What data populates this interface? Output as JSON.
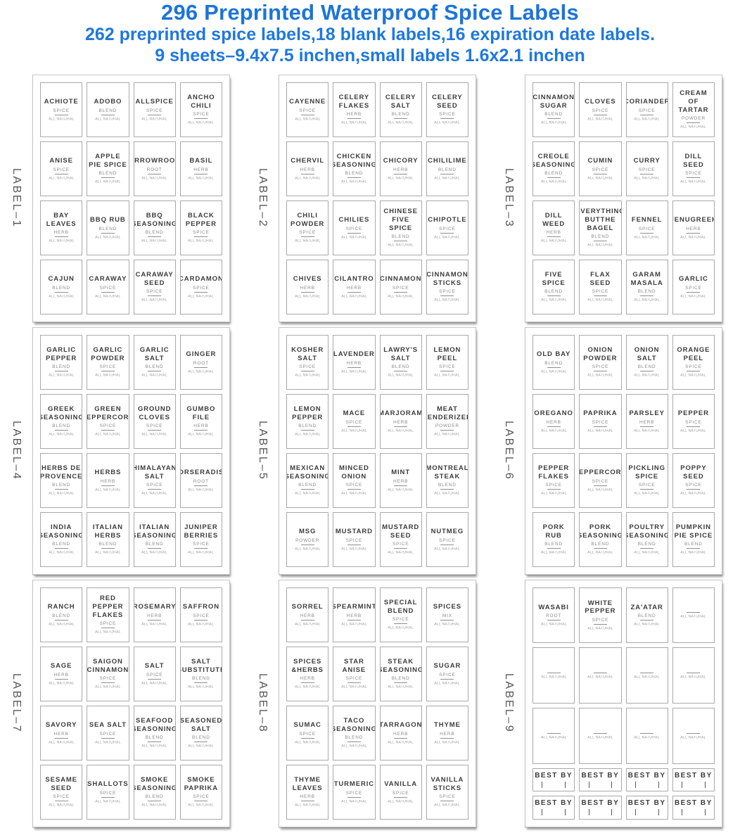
{
  "header": {
    "title": "296 Preprinted Waterproof Spice Labels",
    "subtitle1": "262 preprinted spice labels,18 blank labels,16 expiration date labels.",
    "subtitle2": "9 sheets–9.4x7.5 inchen,small labels 1.6x2.1 inchen",
    "accent_color": "#1c75d8"
  },
  "label_footer": "ALL NATURAL",
  "best_by_text": "BEST BY",
  "sheets": [
    {
      "side_label": "LABEL–1",
      "labels": [
        {
          "name": "ACHIOTE",
          "type": "SPICE"
        },
        {
          "name": "ADOBO",
          "type": "BLEND"
        },
        {
          "name": "ALLSPICE",
          "type": "SPICE"
        },
        {
          "name": "ANCHO CHILI",
          "type": "SPICE"
        },
        {
          "name": "ANISE",
          "type": "SPICE"
        },
        {
          "name": "APPLE PIE SPICE",
          "type": "BLEND"
        },
        {
          "name": "ARROWROOT",
          "type": "ROOT"
        },
        {
          "name": "BASIL",
          "type": "HERB"
        },
        {
          "name": "BAY LEAVES",
          "type": "HERB"
        },
        {
          "name": "BBQ RUB",
          "type": "BLEND"
        },
        {
          "name": "BBQ SEASONING",
          "type": "BLEND"
        },
        {
          "name": "BLACK PEPPER",
          "type": "SPICE"
        },
        {
          "name": "CAJUN",
          "type": "BLEND"
        },
        {
          "name": "CARAWAY",
          "type": "SPICE"
        },
        {
          "name": "CARAWAY SEED",
          "type": "SPICE"
        },
        {
          "name": "CARDAMON",
          "type": "SPICE"
        }
      ]
    },
    {
      "side_label": "LABEL–2",
      "labels": [
        {
          "name": "CAYENNE",
          "type": "SPICE"
        },
        {
          "name": "CELERY FLAKES",
          "type": "HERB"
        },
        {
          "name": "CELERY SALT",
          "type": "BLEND"
        },
        {
          "name": "CELERY SEED",
          "type": "SPICE"
        },
        {
          "name": "CHERVIL",
          "type": "HERB"
        },
        {
          "name": "CHICKEN SEASONING",
          "type": "BLEND"
        },
        {
          "name": "CHICORY",
          "type": "HERB"
        },
        {
          "name": "CHILILIME",
          "type": "BLEND"
        },
        {
          "name": "CHILI POWDER",
          "type": "SPICE"
        },
        {
          "name": "CHILIES",
          "type": "SPICE"
        },
        {
          "name": "CHINESE FIVE SPICE",
          "type": "BLEND"
        },
        {
          "name": "CHIPOTLE",
          "type": "SPICE"
        },
        {
          "name": "CHIVES",
          "type": "HERB"
        },
        {
          "name": "CILANTRO",
          "type": "HERB"
        },
        {
          "name": "CINNAMON",
          "type": "SPICE"
        },
        {
          "name": "CINNAMON STICKS",
          "type": "SPICE"
        }
      ]
    },
    {
      "side_label": "LABEL–3",
      "labels": [
        {
          "name": "CINNAMON SUGAR",
          "type": "BLEND"
        },
        {
          "name": "CLOVES",
          "type": "SPICE"
        },
        {
          "name": "CORIANDER",
          "type": "SPICE"
        },
        {
          "name": "CREAM OF TARTAR",
          "type": "POWDER"
        },
        {
          "name": "CREOLE SEASONING",
          "type": "BLEND"
        },
        {
          "name": "CUMIN",
          "type": "SPICE"
        },
        {
          "name": "CURRY",
          "type": "SPICE"
        },
        {
          "name": "DILL SEED",
          "type": "SPICE"
        },
        {
          "name": "DILL WEED",
          "type": "HERB"
        },
        {
          "name": "EVERYTHING BUTTHE BAGEL",
          "type": "BLEND"
        },
        {
          "name": "FENNEL",
          "type": "SPICE"
        },
        {
          "name": "FENUGREEK",
          "type": "HERB"
        },
        {
          "name": "FIVE SPICE",
          "type": "BLEND"
        },
        {
          "name": "FLAX SEED",
          "type": "SPICE"
        },
        {
          "name": "GARAM MASALA",
          "type": "BLEND"
        },
        {
          "name": "GARLIC",
          "type": "SPICE"
        }
      ]
    },
    {
      "side_label": "LABEL–4",
      "labels": [
        {
          "name": "GARLIC PEPPER",
          "type": "BLEND"
        },
        {
          "name": "GARLIC POWDER",
          "type": "SPICE"
        },
        {
          "name": "GARLIC SALT",
          "type": "BLEND"
        },
        {
          "name": "GINGER",
          "type": "ROOT"
        },
        {
          "name": "GREEK SEASONING",
          "type": "BLEND"
        },
        {
          "name": "GREEN PEPPERCORN",
          "type": "SPICE"
        },
        {
          "name": "GROUND CLOVES",
          "type": "SPICE"
        },
        {
          "name": "GUMBO FILE",
          "type": "HERB"
        },
        {
          "name": "HERBS DE PROVENCE",
          "type": "BLEND"
        },
        {
          "name": "HERBS",
          "type": "HERB"
        },
        {
          "name": "HIMALAYAN SALT",
          "type": "SPICE"
        },
        {
          "name": "HORSERADISH",
          "type": "ROOT"
        },
        {
          "name": "INDIA SEASONING",
          "type": "BLEND"
        },
        {
          "name": "ITALIAN HERBS",
          "type": "BLEND"
        },
        {
          "name": "ITALIAN SEASONING",
          "type": "BLEND"
        },
        {
          "name": "JUNIPER BERRIES",
          "type": "SPICE"
        }
      ]
    },
    {
      "side_label": "LABEL–5",
      "labels": [
        {
          "name": "KOSHER SALT",
          "type": "SPICE"
        },
        {
          "name": "LAVENDER",
          "type": "HERB"
        },
        {
          "name": "LAWRY'S SALT",
          "type": "BLEND"
        },
        {
          "name": "LEMON PEEL",
          "type": "SPICE"
        },
        {
          "name": "LEMON PEPPER",
          "type": "BLEND"
        },
        {
          "name": "MACE",
          "type": "SPICE"
        },
        {
          "name": "MARJORAM",
          "type": "HERB"
        },
        {
          "name": "MEAT TENDERIZER",
          "type": "POWDER"
        },
        {
          "name": "MEXICAN SEASONING",
          "type": "BLEND"
        },
        {
          "name": "MINCED ONION",
          "type": "SPICE"
        },
        {
          "name": "MINT",
          "type": "HERB"
        },
        {
          "name": "MONTREAL STEAK",
          "type": "BLEND"
        },
        {
          "name": "MSG",
          "type": "POWDER"
        },
        {
          "name": "MUSTARD",
          "type": "SPICE"
        },
        {
          "name": "MUSTARD SEED",
          "type": "SPICE"
        },
        {
          "name": "NUTMEG",
          "type": "SPICE"
        }
      ]
    },
    {
      "side_label": "LABEL–6",
      "labels": [
        {
          "name": "OLD BAY",
          "type": "BLEND"
        },
        {
          "name": "ONION POWDER",
          "type": "SPICE"
        },
        {
          "name": "ONION SALT",
          "type": "BLEND"
        },
        {
          "name": "ORANGE PEEL",
          "type": "SPICE"
        },
        {
          "name": "OREGANO",
          "type": "HERB"
        },
        {
          "name": "PAPRIKA",
          "type": "SPICE"
        },
        {
          "name": "PARSLEY",
          "type": "HERB"
        },
        {
          "name": "PEPPER",
          "type": "SPICE"
        },
        {
          "name": "PEPPER FLAKES",
          "type": "SPICE"
        },
        {
          "name": "PEPPERCORN",
          "type": "SPICE"
        },
        {
          "name": "PICKLING SPICE",
          "type": "SPICE"
        },
        {
          "name": "POPPY SEED",
          "type": "SPICE"
        },
        {
          "name": "PORK RUB",
          "type": "BLEND"
        },
        {
          "name": "PORK SEASONING",
          "type": "BLEND"
        },
        {
          "name": "POULTRY SEASONING",
          "type": "BLEND"
        },
        {
          "name": "PUMPKIN PIE SPICE",
          "type": "BLEND"
        }
      ]
    },
    {
      "side_label": "LABEL–7",
      "labels": [
        {
          "name": "RANCH",
          "type": "BLEND"
        },
        {
          "name": "RED PEPPER FLAKES",
          "type": "SPICE"
        },
        {
          "name": "ROSEMARY",
          "type": "HERB"
        },
        {
          "name": "SAFFRON",
          "type": "SPICE"
        },
        {
          "name": "SAGE",
          "type": "HERB"
        },
        {
          "name": "SAIGON CINNAMON",
          "type": "SPICE"
        },
        {
          "name": "SALT",
          "type": "SPICE"
        },
        {
          "name": "SALT SUBSTITUTE",
          "type": "BLEND"
        },
        {
          "name": "SAVORY",
          "type": "HERB"
        },
        {
          "name": "SEA SALT",
          "type": "SPICE"
        },
        {
          "name": "SEAFOOD SEASONING",
          "type": "BLEND"
        },
        {
          "name": "SEASONED SALT",
          "type": "BLEND"
        },
        {
          "name": "SESAME SEED",
          "type": "SPICE"
        },
        {
          "name": "SHALLOTS",
          "type": "SPICE"
        },
        {
          "name": "SMOKE SEASONING",
          "type": "BLEND"
        },
        {
          "name": "SMOKE PAPRIKA",
          "type": "SPICE"
        }
      ]
    },
    {
      "side_label": "LABEL–8",
      "labels": [
        {
          "name": "SORREL",
          "type": "HERB"
        },
        {
          "name": "SPEARMINT",
          "type": "HERB"
        },
        {
          "name": "SPECIAL BLEND",
          "type": "SPICE"
        },
        {
          "name": "SPICES",
          "type": "MIX"
        },
        {
          "name": "SPICES &HERBS",
          "type": "HERB"
        },
        {
          "name": "STAR ANISE",
          "type": "SPICE"
        },
        {
          "name": "STEAK SEASONING",
          "type": "BLEND"
        },
        {
          "name": "SUGAR",
          "type": "SPICE"
        },
        {
          "name": "SUMAC",
          "type": "SPICE"
        },
        {
          "name": "TACO SEASONING",
          "type": "BLEND"
        },
        {
          "name": "TARRAGON",
          "type": "HERB"
        },
        {
          "name": "THYME",
          "type": "HERB"
        },
        {
          "name": "THYME LEAVES",
          "type": "HERB"
        },
        {
          "name": "TURMERIC",
          "type": "SPICE"
        },
        {
          "name": "VANILLA",
          "type": "SPICE"
        },
        {
          "name": "VANILLA STICKS",
          "type": "SPICE"
        }
      ]
    },
    {
      "side_label": "LABEL–9",
      "special_layout": true,
      "labels": [
        {
          "name": "WASABI",
          "type": "ROOT"
        },
        {
          "name": "WHITE PEPPER",
          "type": "SPICE"
        },
        {
          "name": "ZA'ATAR",
          "type": "BLEND"
        },
        {
          "kind": "blank"
        },
        {
          "kind": "blank"
        },
        {
          "kind": "blank"
        },
        {
          "kind": "blank"
        },
        {
          "kind": "blank"
        },
        {
          "kind": "blank"
        },
        {
          "kind": "blank"
        },
        {
          "kind": "blank"
        },
        {
          "kind": "blank"
        },
        {
          "kind": "bestby"
        },
        {
          "kind": "bestby"
        },
        {
          "kind": "bestby"
        },
        {
          "kind": "bestby"
        },
        {
          "kind": "bestby"
        },
        {
          "kind": "bestby"
        },
        {
          "kind": "bestby"
        },
        {
          "kind": "bestby"
        }
      ]
    }
  ]
}
